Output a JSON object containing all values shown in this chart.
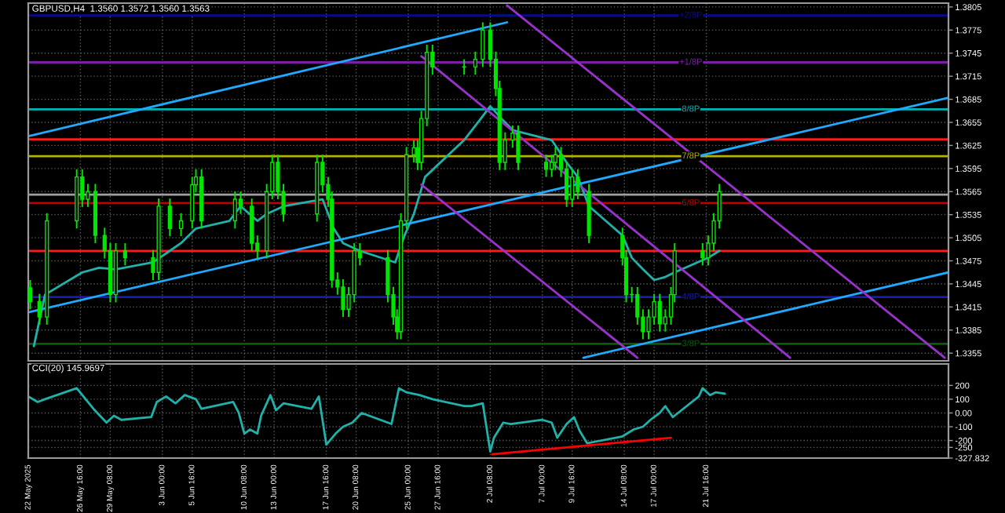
{
  "chart_data": [
    {
      "type": "candlestick",
      "title": "GBPUSD,H4  1.3560 1.3572 1.3560 1.3563",
      "color": "#00e600",
      "x": [
        "2025-05-22T04:00",
        "2025-05-23T00:00",
        "2025-05-23T16:00",
        "2025-05-26T08:00",
        "2025-05-26T20:00",
        "2025-05-27T08:00",
        "2025-05-28T00:00",
        "2025-05-28T20:00",
        "2025-05-29T08:00",
        "2025-05-29T20:00",
        "2025-05-30T16:00",
        "2025-06-02T04:00",
        "2025-06-02T16:00",
        "2025-06-03T16:00",
        "2025-06-04T16:00",
        "2025-06-05T16:00",
        "2025-06-06T00:00",
        "2025-06-06T12:00",
        "2025-06-09T12:00",
        "2025-06-10T00:00",
        "2025-06-11T00:00",
        "2025-06-11T12:00",
        "2025-06-12T08:00",
        "2025-06-12T20:00",
        "2025-06-13T08:00",
        "2025-06-13T20:00",
        "2025-06-16T20:00",
        "2025-06-17T08:00",
        "2025-06-17T20:00",
        "2025-06-18T04:00",
        "2025-06-18T16:00",
        "2025-06-19T04:00",
        "2025-06-19T16:00",
        "2025-06-20T04:00",
        "2025-06-20T16:00",
        "2025-06-23T04:00",
        "2025-06-23T16:00",
        "2025-06-24T00:00",
        "2025-06-24T08:00",
        "2025-06-24T20:00",
        "2025-06-25T12:00",
        "2025-06-25T20:00",
        "2025-06-26T04:00",
        "2025-06-26T16:00",
        "2025-06-27T04:00",
        "2025-06-30T00:00",
        "2025-07-01T00:00",
        "2025-07-01T16:00",
        "2025-07-02T08:00",
        "2025-07-02T20:00",
        "2025-07-03T04:00",
        "2025-07-03T16:00",
        "2025-07-04T08:00",
        "2025-07-04T20:00",
        "2025-07-07T08:00",
        "2025-07-07T20:00",
        "2025-07-08T04:00",
        "2025-07-08T16:00",
        "2025-07-09T04:00",
        "2025-07-09T16:00",
        "2025-07-10T04:00",
        "2025-07-11T04:00",
        "2025-07-14T04:00",
        "2025-07-14T12:00",
        "2025-07-15T00:00",
        "2025-07-15T12:00",
        "2025-07-16T00:00",
        "2025-07-16T12:00",
        "2025-07-17T00:00",
        "2025-07-17T12:00",
        "2025-07-18T00:00",
        "2025-07-18T12:00",
        "2025-07-18T20:00",
        "2025-07-21T08:00",
        "2025-07-21T20:00",
        "2025-07-22T08:00",
        "2025-07-22T20:00"
      ],
      "ohlc": [
        [
          1.344,
          1.345,
          1.3412,
          1.3422
        ],
        [
          1.3422,
          1.3432,
          1.3392,
          1.3402
        ],
        [
          1.3402,
          1.3537,
          1.3392,
          1.3527
        ],
        [
          1.3527,
          1.3594,
          1.3517,
          1.3584
        ],
        [
          1.3584,
          1.3594,
          1.3545,
          1.3555
        ],
        [
          1.3555,
          1.3575,
          1.3545,
          1.3565
        ],
        [
          1.3565,
          1.3575,
          1.3498,
          1.3508
        ],
        [
          1.3508,
          1.3518,
          1.3478,
          1.3488
        ],
        [
          1.3488,
          1.3498,
          1.3421,
          1.3431
        ],
        [
          1.3431,
          1.3498,
          1.3421,
          1.3488
        ],
        [
          1.3488,
          1.3498,
          1.3469,
          1.3479
        ],
        [
          1.3479,
          1.3489,
          1.345,
          1.346
        ],
        [
          1.346,
          1.3556,
          1.345,
          1.3546
        ],
        [
          1.3546,
          1.3556,
          1.3507,
          1.3517
        ],
        [
          1.3517,
          1.3537,
          1.3507,
          1.3527
        ],
        [
          1.3527,
          1.3584,
          1.3517,
          1.3574
        ],
        [
          1.3574,
          1.3594,
          1.3564,
          1.3584
        ],
        [
          1.3584,
          1.3594,
          1.3517,
          1.3527
        ],
        [
          1.3527,
          1.3565,
          1.3517,
          1.3555
        ],
        [
          1.3555,
          1.3565,
          1.3536,
          1.3546
        ],
        [
          1.3546,
          1.3556,
          1.3488,
          1.3498
        ],
        [
          1.3498,
          1.3508,
          1.3478,
          1.3488
        ],
        [
          1.3488,
          1.3575,
          1.3478,
          1.3565
        ],
        [
          1.3565,
          1.3613,
          1.3555,
          1.3603
        ],
        [
          1.3603,
          1.3613,
          1.3555,
          1.3565
        ],
        [
          1.3565,
          1.3575,
          1.3526,
          1.3536
        ],
        [
          1.3536,
          1.3613,
          1.3526,
          1.3603
        ],
        [
          1.3603,
          1.3613,
          1.3564,
          1.3574
        ],
        [
          1.3574,
          1.3584,
          1.3545,
          1.3555
        ],
        [
          1.3555,
          1.3565,
          1.344,
          1.345
        ],
        [
          1.345,
          1.346,
          1.3431,
          1.3441
        ],
        [
          1.3441,
          1.3451,
          1.3402,
          1.3412
        ],
        [
          1.3412,
          1.3441,
          1.3402,
          1.3431
        ],
        [
          1.3431,
          1.3498,
          1.3421,
          1.3488
        ],
        [
          1.3488,
          1.3498,
          1.3469,
          1.3479
        ],
        [
          1.3479,
          1.3489,
          1.3421,
          1.3431
        ],
        [
          1.3431,
          1.3441,
          1.3392,
          1.3402
        ],
        [
          1.3402,
          1.3412,
          1.3373,
          1.3383
        ],
        [
          1.3383,
          1.3537,
          1.3373,
          1.3527
        ],
        [
          1.3527,
          1.3623,
          1.3517,
          1.3613
        ],
        [
          1.3613,
          1.3632,
          1.3603,
          1.3622
        ],
        [
          1.3622,
          1.3632,
          1.3593,
          1.3603
        ],
        [
          1.3603,
          1.367,
          1.3593,
          1.366
        ],
        [
          1.366,
          1.3756,
          1.365,
          1.3746
        ],
        [
          1.3746,
          1.3756,
          1.3717,
          1.3727
        ],
        [
          1.3727,
          1.3737,
          1.3717,
          1.3727
        ],
        [
          1.3727,
          1.3747,
          1.3717,
          1.3737
        ],
        [
          1.3737,
          1.3785,
          1.3727,
          1.3775
        ],
        [
          1.3775,
          1.3785,
          1.3727,
          1.3737
        ],
        [
          1.3737,
          1.3747,
          1.3689,
          1.3699
        ],
        [
          1.3699,
          1.3709,
          1.3593,
          1.3603
        ],
        [
          1.3603,
          1.3642,
          1.3593,
          1.3632
        ],
        [
          1.3632,
          1.3651,
          1.3622,
          1.3641
        ],
        [
          1.3641,
          1.3651,
          1.3593,
          1.3603
        ],
        [
          1.3603,
          1.3613,
          1.3584,
          1.3594
        ],
        [
          1.3594,
          1.3613,
          1.3584,
          1.3603
        ],
        [
          1.3603,
          1.3623,
          1.3593,
          1.3613
        ],
        [
          1.3613,
          1.3623,
          1.3584,
          1.3594
        ],
        [
          1.3594,
          1.3604,
          1.3545,
          1.3555
        ],
        [
          1.3555,
          1.3594,
          1.3545,
          1.3584
        ],
        [
          1.3584,
          1.3594,
          1.3555,
          1.3565
        ],
        [
          1.3565,
          1.3575,
          1.3498,
          1.3508
        ],
        [
          1.3508,
          1.3518,
          1.3469,
          1.3479
        ],
        [
          1.3479,
          1.3489,
          1.3421,
          1.3431
        ],
        [
          1.3431,
          1.3441,
          1.3421,
          1.3431
        ],
        [
          1.3431,
          1.3441,
          1.3392,
          1.3402
        ],
        [
          1.3402,
          1.3412,
          1.3373,
          1.3383
        ],
        [
          1.3383,
          1.3412,
          1.3373,
          1.3402
        ],
        [
          1.3402,
          1.3432,
          1.3392,
          1.3422
        ],
        [
          1.3422,
          1.3432,
          1.3383,
          1.3393
        ],
        [
          1.3393,
          1.3412,
          1.3383,
          1.3402
        ],
        [
          1.3402,
          1.3441,
          1.3392,
          1.3431
        ],
        [
          1.3431,
          1.3498,
          1.3421,
          1.3488
        ],
        [
          1.3488,
          1.3498,
          1.3469,
          1.3479
        ],
        [
          1.3479,
          1.3508,
          1.3469,
          1.3498
        ],
        [
          1.3498,
          1.3537,
          1.3488,
          1.3527
        ],
        [
          1.3527,
          1.3575,
          1.3517,
          1.3565
        ]
      ],
      "series": [
        {
          "type": "line",
          "color": "#20b2aa",
          "x": [
            "2025-05-22T12:00",
            "2025-05-23T12:00",
            "2025-05-26T20:00",
            "2025-05-28T08:00",
            "2025-05-29T20:00",
            "2025-06-02T04:00",
            "2025-06-03T16:00",
            "2025-06-04T16:00",
            "2025-06-06T00:00",
            "2025-06-09T00:00",
            "2025-06-10T00:00",
            "2025-06-11T12:00",
            "2025-06-12T08:00",
            "2025-06-13T20:00",
            "2025-06-17T08:00",
            "2025-06-18T08:00",
            "2025-06-19T04:00",
            "2025-06-20T16:00",
            "2025-06-23T20:00",
            "2025-06-24T16:00",
            "2025-06-25T12:00",
            "2025-06-26T12:00",
            "2025-06-30T00:00",
            "2025-07-01T12:00",
            "2025-07-02T08:00",
            "2025-07-03T08:00",
            "2025-07-04T08:00",
            "2025-07-07T20:00",
            "2025-07-09T04:00",
            "2025-07-10T04:00",
            "2025-07-11T04:00",
            "2025-07-14T04:00",
            "2025-07-15T00:00",
            "2025-07-16T00:00",
            "2025-07-17T00:00",
            "2025-07-18T00:00",
            "2025-07-18T20:00",
            "2025-07-21T20:00",
            "2025-07-22T20:00"
          ],
          "values": [
            1.3364,
            1.3431,
            1.346,
            1.3466,
            1.3464,
            1.3473,
            1.3488,
            1.3498,
            1.3517,
            1.3527,
            1.3546,
            1.3527,
            1.3536,
            1.3546,
            1.3555,
            1.3517,
            1.3498,
            1.3488,
            1.3473,
            1.3508,
            1.3536,
            1.3584,
            1.3632,
            1.366,
            1.3676,
            1.366,
            1.3645,
            1.3632,
            1.3603,
            1.3584,
            1.3546,
            1.3508,
            1.3479,
            1.3464,
            1.345,
            1.3454,
            1.346,
            1.3479,
            1.3488
          ]
        },
        {
          "type": "line",
          "color": "#1eaaff",
          "x": [
            "2025-05-22T00:00",
            "2025-07-03T20:00"
          ],
          "values": [
            1.3637,
            1.3785
          ]
        },
        {
          "type": "line",
          "color": "#1eaaff",
          "x": [
            "2025-05-22T00:00",
            "2025-08-12T08:00"
          ],
          "values": [
            1.3408,
            1.3687
          ]
        },
        {
          "type": "line",
          "color": "#1eaaff",
          "x": [
            "2025-07-10T16:00",
            "2025-08-12T08:00"
          ],
          "values": [
            1.3349,
            1.346
          ]
        },
        {
          "type": "line",
          "color": "#9932cc",
          "x": [
            "2025-07-03T20:00",
            "2025-08-12T00:00"
          ],
          "values": [
            1.3807,
            1.3349
          ]
        },
        {
          "type": "line",
          "color": "#9932cc",
          "x": [
            "2025-06-26T04:00",
            "2025-07-29T04:00"
          ],
          "values": [
            1.3741,
            1.3349
          ]
        },
        {
          "type": "line",
          "color": "#9932cc",
          "x": [
            "2025-06-26T04:00",
            "2025-07-15T12:00"
          ],
          "values": [
            1.3574,
            1.3349
          ]
        }
      ],
      "ref_lines": [
        {
          "axis": "y",
          "value": 1.3794,
          "label": "+2/8P",
          "color": "#0a0a8c"
        },
        {
          "axis": "y",
          "value": 1.3733,
          "label": "+1/8P",
          "color": "#7b1fa2"
        },
        {
          "axis": "y",
          "value": 1.3672,
          "label": "8/8P",
          "color": "#00b3b3"
        },
        {
          "axis": "y",
          "value": 1.3633,
          "color": "#ff1a1a"
        },
        {
          "axis": "y",
          "value": 1.3611,
          "label": "7/8P",
          "color": "#b3b300"
        },
        {
          "axis": "y",
          "value": 1.3561,
          "color": "#a0a0a0"
        },
        {
          "axis": "y",
          "value": 1.355,
          "label": "6/8P",
          "color": "#c00000"
        },
        {
          "axis": "y",
          "value": 1.3488,
          "color": "#ff1a1a"
        },
        {
          "axis": "y",
          "value": 1.3428,
          "label": "4/8P",
          "color": "#1a1ab3"
        },
        {
          "axis": "y",
          "value": 1.3367,
          "label": "3/8P",
          "color": "#0a5a0a"
        }
      ],
      "xlim": [
        "2025-05-22T00:00",
        "2025-08-12T08:00"
      ],
      "xticks": [
        {
          "value": "2025-05-22T00:00",
          "label": null
        },
        {
          "value": "2025-05-26T16:00",
          "label": null
        },
        {
          "value": "2025-05-29T08:00",
          "label": null
        },
        {
          "value": "2025-06-03T00:00",
          "label": null
        },
        {
          "value": "2025-06-05T16:00",
          "label": null
        },
        {
          "value": "2025-06-10T08:00",
          "label": null
        },
        {
          "value": "2025-06-13T00:00",
          "label": null
        },
        {
          "value": "2025-06-17T16:00",
          "label": null
        },
        {
          "value": "2025-06-20T08:00",
          "label": null
        },
        {
          "value": "2025-06-25T00:00",
          "label": null
        },
        {
          "value": "2025-06-27T16:00",
          "label": null
        },
        {
          "value": "2025-07-02T08:00",
          "label": null
        },
        {
          "value": "2025-07-07T00:00",
          "label": null
        },
        {
          "value": "2025-07-09T16:00",
          "label": null
        },
        {
          "value": "2025-07-14T08:00",
          "label": null
        },
        {
          "value": "2025-07-17T00:00",
          "label": null
        },
        {
          "value": "2025-07-21T16:00",
          "label": null
        }
      ],
      "ylim": [
        1.3345,
        1.381
      ],
      "yticks": [
        1.3355,
        1.3385,
        1.3415,
        1.3445,
        1.3475,
        1.3505,
        1.3535,
        1.3565,
        1.3595,
        1.3625,
        1.3655,
        1.3685,
        1.3715,
        1.3745,
        1.3775,
        1.3805
      ],
      "tick_labels": "y",
      "grid": true
    },
    {
      "type": "line",
      "title": "CCI(20) 145.9697",
      "series": [
        {
          "color": "#20b2aa",
          "x": [
            "2025-05-22T00:00",
            "2025-05-22T20:00",
            "2025-05-23T12:00",
            "2025-05-26T08:00",
            "2025-05-26T20:00",
            "2025-05-27T20:00",
            "2025-05-29T00:00",
            "2025-05-29T16:00",
            "2025-05-30T08:00",
            "2025-06-02T00:00",
            "2025-06-02T12:00",
            "2025-06-03T08:00",
            "2025-06-04T04:00",
            "2025-06-05T00:00",
            "2025-06-06T00:00",
            "2025-06-06T12:00",
            "2025-06-09T08:00",
            "2025-06-09T20:00",
            "2025-06-10T08:00",
            "2025-06-10T20:00",
            "2025-06-11T12:00",
            "2025-06-11T20:00",
            "2025-06-12T16:00",
            "2025-06-13T04:00",
            "2025-06-13T20:00",
            "2025-06-16T08:00",
            "2025-06-17T00:00",
            "2025-06-17T16:00",
            "2025-06-18T12:00",
            "2025-06-19T04:00",
            "2025-06-20T00:00",
            "2025-06-20T20:00",
            "2025-06-23T12:00",
            "2025-06-24T04:00",
            "2025-06-24T20:00",
            "2025-06-26T00:00",
            "2025-06-27T04:00",
            "2025-06-30T00:00",
            "2025-06-30T16:00",
            "2025-07-01T16:00",
            "2025-07-02T08:00",
            "2025-07-02T16:00",
            "2025-07-03T12:00",
            "2025-07-04T04:00",
            "2025-07-07T00:00",
            "2025-07-07T20:00",
            "2025-07-08T08:00",
            "2025-07-09T04:00",
            "2025-07-09T20:00",
            "2025-07-10T08:00",
            "2025-07-11T00:00",
            "2025-07-14T04:00",
            "2025-07-15T04:00",
            "2025-07-16T00:00",
            "2025-07-16T16:00",
            "2025-07-17T12:00",
            "2025-07-18T00:00",
            "2025-07-18T16:00",
            "2025-07-21T00:00",
            "2025-07-21T08:00",
            "2025-07-22T00:00",
            "2025-07-22T12:00",
            "2025-07-23T08:00"
          ],
          "values": [
            120,
            80,
            100,
            180,
            130,
            30,
            -70,
            -20,
            -50,
            -30,
            80,
            120,
            70,
            130,
            100,
            30,
            80,
            0,
            -150,
            -120,
            -150,
            -20,
            130,
            20,
            70,
            30,
            120,
            -230,
            -150,
            -100,
            -70,
            0,
            -80,
            180,
            150,
            130,
            100,
            50,
            50,
            70,
            -280,
            -180,
            -70,
            -80,
            -50,
            -70,
            -180,
            -80,
            -30,
            -130,
            -220,
            -170,
            -120,
            -100,
            -50,
            0,
            50,
            -30,
            120,
            180,
            130,
            150,
            140
          ]
        },
        {
          "color": "#ff0000",
          "x": [
            "2025-07-02T12:00",
            "2025-07-18T12:00"
          ],
          "values": [
            -300,
            -180
          ]
        }
      ],
      "xlim": [
        "2025-05-22T00:00",
        "2025-08-12T08:00"
      ],
      "xticks": [
        {
          "value": "2025-05-22T00:00",
          "label": "22 May 2025"
        },
        {
          "value": "2025-05-26T16:00",
          "label": "26 May 16:00"
        },
        {
          "value": "2025-05-29T08:00",
          "label": "29 May 08:00"
        },
        {
          "value": "2025-06-03T00:00",
          "label": "3 Jun 00:00"
        },
        {
          "value": "2025-06-05T16:00",
          "label": "5 Jun 16:00"
        },
        {
          "value": "2025-06-10T08:00",
          "label": "10 Jun 08:00"
        },
        {
          "value": "2025-06-13T00:00",
          "label": "13 Jun 00:00"
        },
        {
          "value": "2025-06-17T16:00",
          "label": "17 Jun 16:00"
        },
        {
          "value": "2025-06-20T08:00",
          "label": "20 Jun 08:00"
        },
        {
          "value": "2025-06-25T00:00",
          "label": "25 Jun 00:00"
        },
        {
          "value": "2025-06-27T16:00",
          "label": "27 Jun 16:00"
        },
        {
          "value": "2025-07-02T08:00",
          "label": "2 Jul 08:00"
        },
        {
          "value": "2025-07-07T00:00",
          "label": "7 Jul 00:00"
        },
        {
          "value": "2025-07-09T16:00",
          "label": "9 Jul 16:00"
        },
        {
          "value": "2025-07-14T08:00",
          "label": "14 Jul 08:00"
        },
        {
          "value": "2025-07-17T00:00",
          "label": "17 Jul 00:00"
        },
        {
          "value": "2025-07-21T16:00",
          "label": "21 Jul 16:00"
        }
      ],
      "ylim": [
        -327.832,
        356
      ],
      "yticks": [
        -327.832,
        -250,
        -200,
        -100,
        {
          "value": 0,
          "label": "0.00"
        },
        100,
        200
      ],
      "grid": true
    }
  ]
}
